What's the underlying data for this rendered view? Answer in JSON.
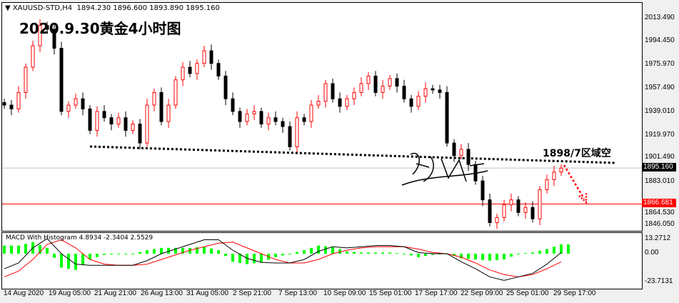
{
  "header": {
    "symbol": "XAUUSD-STD,H4",
    "ohlc": "1894.230 1896.600 1893.890 1895.160"
  },
  "annotation": {
    "title": "2020.9.30黄金4小时图",
    "zone_label": "1898/7区域空"
  },
  "price_axis": {
    "labels": [
      "2013.490",
      "1994.450",
      "1975.970",
      "1957.490",
      "1939.010",
      "1919.970",
      "1901.490",
      "1883.010",
      "1864.530",
      "1846.050"
    ],
    "current_price": "1895.160",
    "level_price": "1866.681"
  },
  "macd_axis": {
    "labels": [
      "13.2712",
      "0.00",
      "-23.7131"
    ],
    "legend": "MACD With Histogram 4.8934 -2.3404 2.5529"
  },
  "time_axis": [
    "14 Aug 2020",
    "19 Aug 05:00",
    "21 Aug 21:00",
    "26 Aug 13:00",
    "31 Aug 05:00",
    "2 Sep 21:00",
    "7 Sep 13:00",
    "10 Sep 09:00",
    "15 Sep 01:00",
    "17 Sep 17:00",
    "22 Sep 09:00",
    "25 Sep 01:00",
    "29 Sep 17:00"
  ],
  "colors": {
    "up": "#ff0000",
    "down": "#000000",
    "histogram": "#00ff00",
    "signal": "#ff0000",
    "macd": "#000000",
    "level": "#ff0000"
  },
  "chart_data": {
    "type": "candlestick",
    "ylim": [
      1846.05,
      2013.49
    ],
    "closes": [
      1945,
      1942,
      1955,
      1975,
      1992,
      2008,
      2005,
      1990,
      1940,
      1945,
      1950,
      1942,
      1925,
      1940,
      1935,
      1930,
      1935,
      1925,
      1930,
      1915,
      1945,
      1955,
      1932,
      1945,
      1965,
      1975,
      1970,
      1978,
      1988,
      1978,
      1968,
      1950,
      1940,
      1932,
      1938,
      1940,
      1930,
      1935,
      1932,
      1928,
      1912,
      1935,
      1932,
      1945,
      1948,
      1962,
      1950,
      1944,
      1950,
      1955,
      1962,
      1968,
      1955,
      1960,
      1966,
      1960,
      1950,
      1944,
      1952,
      1958,
      1957,
      1955,
      1915,
      1905,
      1910,
      1898,
      1885,
      1870,
      1852,
      1856,
      1866,
      1870,
      1860,
      1864,
      1855,
      1878,
      1886,
      1892,
      1895.16
    ],
    "macd": {
      "ylim": [
        -23.7131,
        13.2712
      ],
      "main": [
        -13,
        -8,
        5,
        13,
        0,
        -9,
        -10,
        -10,
        -10,
        -10,
        -6,
        0,
        4,
        8,
        12,
        12,
        3,
        -4,
        -7.5,
        -8,
        -8,
        -5,
        2,
        6,
        5,
        6,
        7,
        7,
        6,
        1,
        0,
        0,
        -7,
        -13,
        -20,
        -23,
        -20,
        -17,
        -9,
        1
      ],
      "signal": [
        -20,
        -15,
        -5,
        8,
        12,
        5,
        -5,
        -9,
        -10,
        -10,
        -9,
        -5,
        -1,
        3,
        6,
        9,
        10,
        5,
        0,
        -5,
        -8,
        -8,
        -5,
        0,
        3,
        5,
        6,
        6,
        6,
        4,
        1,
        0,
        -3,
        -8,
        -14,
        -18,
        -20,
        -18,
        -13,
        -7
      ]
    }
  }
}
